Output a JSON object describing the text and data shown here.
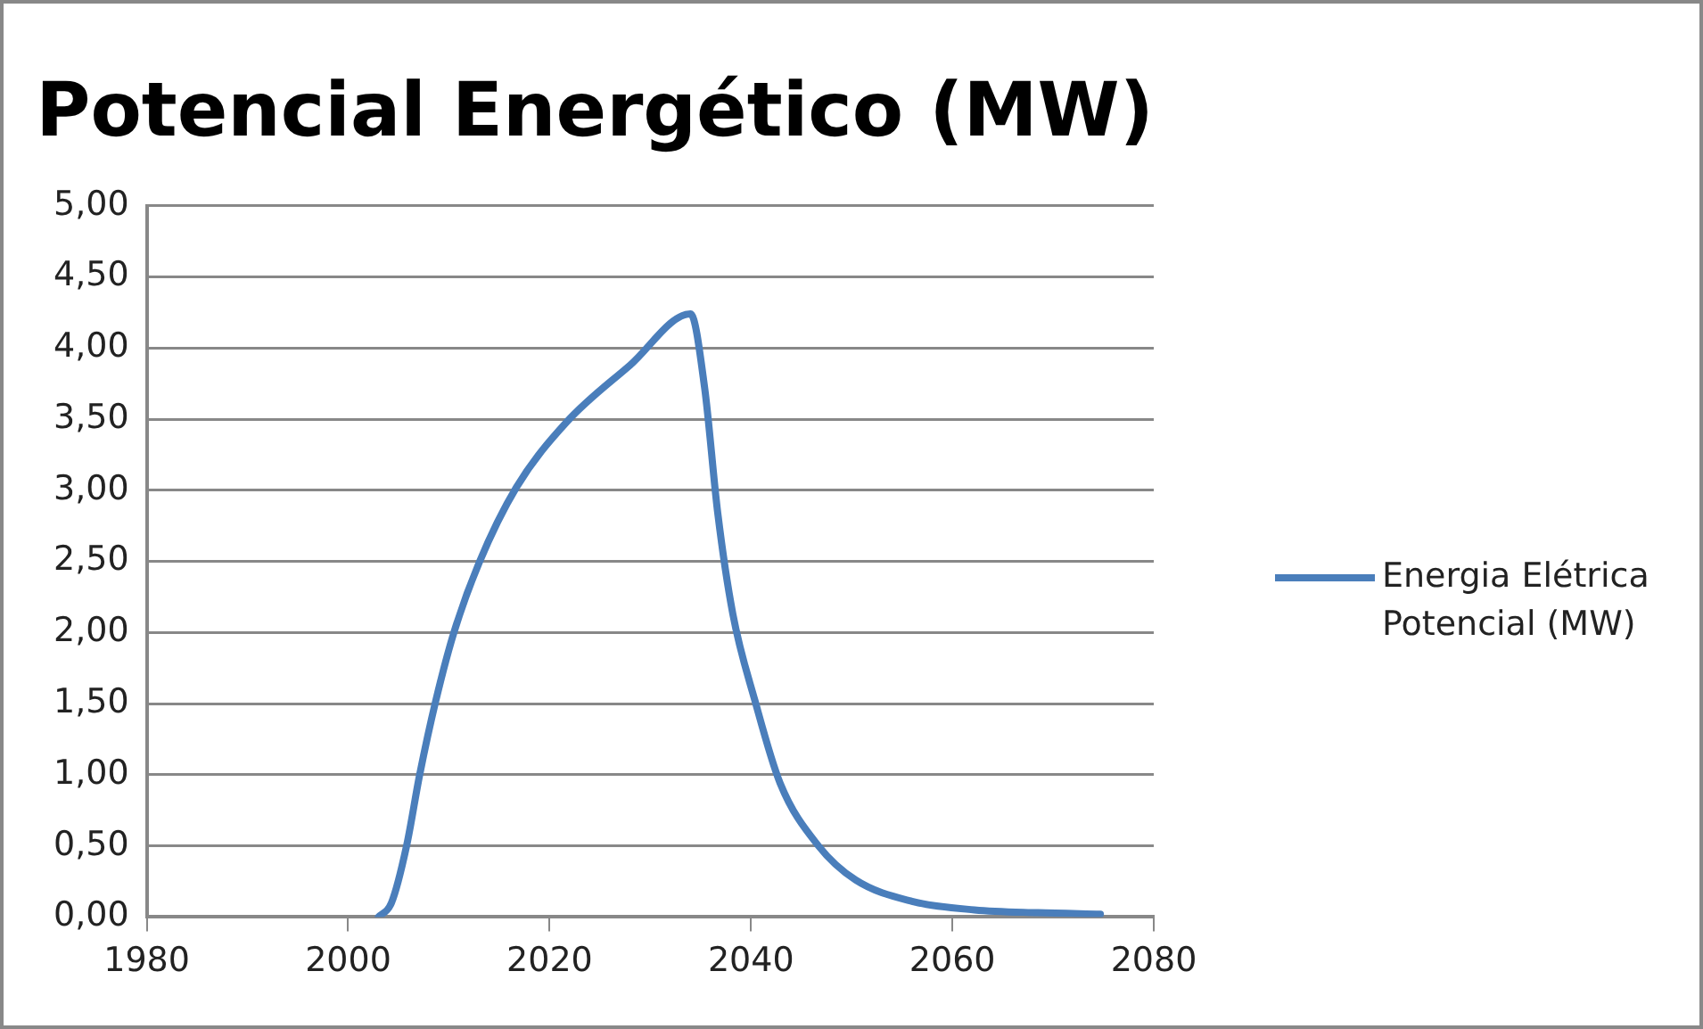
{
  "chart_data": {
    "type": "line",
    "title": "Potencial Energético (MW)",
    "series": [
      {
        "name": "Energia Elétrica Potencial (MW)",
        "color": "#4a7ebb",
        "x": [
          2003.0,
          2004.3,
          2005.8,
          2007.1,
          2008.7,
          2010.5,
          2013.0,
          2016.7,
          2021.7,
          2028.0,
          2034.0,
          2035.4,
          2036.7,
          2038.2,
          2040.4,
          2042.9,
          2046.7,
          2050.4,
          2056.0,
          2062.2,
          2068.5,
          2074.7
        ],
        "values": [
          0,
          0.1,
          0.5,
          1.0,
          1.52,
          2.0,
          2.49,
          3.02,
          3.48,
          3.88,
          4.24,
          3.72,
          2.84,
          2.13,
          1.52,
          0.94,
          0.5,
          0.26,
          0.11,
          0.05,
          0.03,
          0.02
        ]
      }
    ],
    "xlim": [
      1980,
      2080
    ],
    "xticks": [
      1980,
      2000,
      2020,
      2040,
      2060,
      2080
    ],
    "ylim": [
      0,
      5
    ],
    "yticks": [
      {
        "value": 0,
        "label": "0,00"
      },
      {
        "value": 0.5,
        "label": "0,50"
      },
      {
        "value": 1,
        "label": "1,00"
      },
      {
        "value": 1.5,
        "label": "1,50"
      },
      {
        "value": 2,
        "label": "2,00"
      },
      {
        "value": 2.5,
        "label": "2,50"
      },
      {
        "value": 3,
        "label": "3,00"
      },
      {
        "value": 3.5,
        "label": "3,50"
      },
      {
        "value": 4,
        "label": "4,00"
      },
      {
        "value": 4.5,
        "label": "4,50"
      },
      {
        "value": 5,
        "label": "5,00"
      }
    ],
    "grid": "y",
    "legend": "right",
    "marker": "none",
    "line_style": "solid"
  }
}
